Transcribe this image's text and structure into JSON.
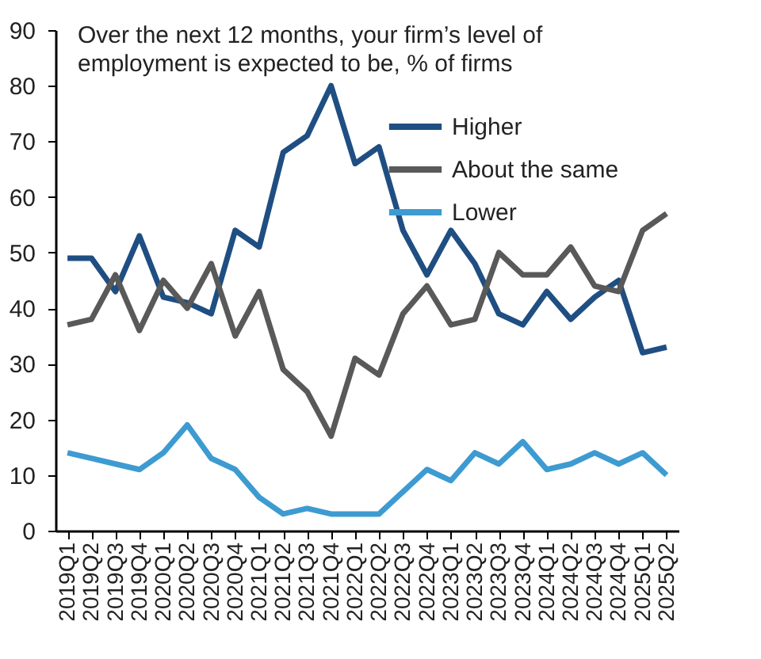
{
  "chart_data": {
    "type": "line",
    "title": "Over the next 12 months, your firm’s level of\nemployment is expected to be, % of firms",
    "categories": [
      "2019Q1",
      "2019Q2",
      "2019Q3",
      "2019Q4",
      "2020Q1",
      "2020Q2",
      "2020Q3",
      "2020Q4",
      "2021Q1",
      "2021Q2",
      "2021Q3",
      "2021Q4",
      "2022Q1",
      "2022Q2",
      "2022Q3",
      "2022Q4",
      "2023Q1",
      "2023Q2",
      "2023Q3",
      "2023Q4",
      "2024Q1",
      "2024Q2",
      "2024Q3",
      "2024Q4",
      "2025Q1",
      "2025Q2"
    ],
    "series": [
      {
        "name": "Higher",
        "color": "#1f4e82",
        "values": [
          49,
          49,
          43,
          53,
          42,
          41,
          39,
          54,
          51,
          68,
          71,
          80,
          66,
          69,
          54,
          46,
          54,
          48,
          39,
          37,
          43,
          38,
          42,
          45,
          32,
          33
        ]
      },
      {
        "name": "About the same",
        "color": "#595959",
        "values": [
          37,
          38,
          46,
          36,
          45,
          40,
          48,
          35,
          43,
          29,
          25,
          17,
          31,
          28,
          39,
          44,
          37,
          38,
          50,
          46,
          46,
          51,
          44,
          43,
          54,
          57
        ]
      },
      {
        "name": "Lower",
        "color": "#3d9bd1",
        "values": [
          14,
          13,
          12,
          11,
          14,
          19,
          13,
          11,
          6,
          3,
          4,
          3,
          3,
          3,
          7,
          11,
          9,
          14,
          12,
          16,
          11,
          12,
          14,
          12,
          14,
          10
        ]
      }
    ],
    "ylim": [
      0,
      90
    ],
    "yticks": [
      0,
      10,
      20,
      30,
      40,
      50,
      60,
      70,
      80,
      90
    ],
    "grid": false,
    "legend": "top right",
    "marker": "none",
    "line_style": "solid"
  }
}
